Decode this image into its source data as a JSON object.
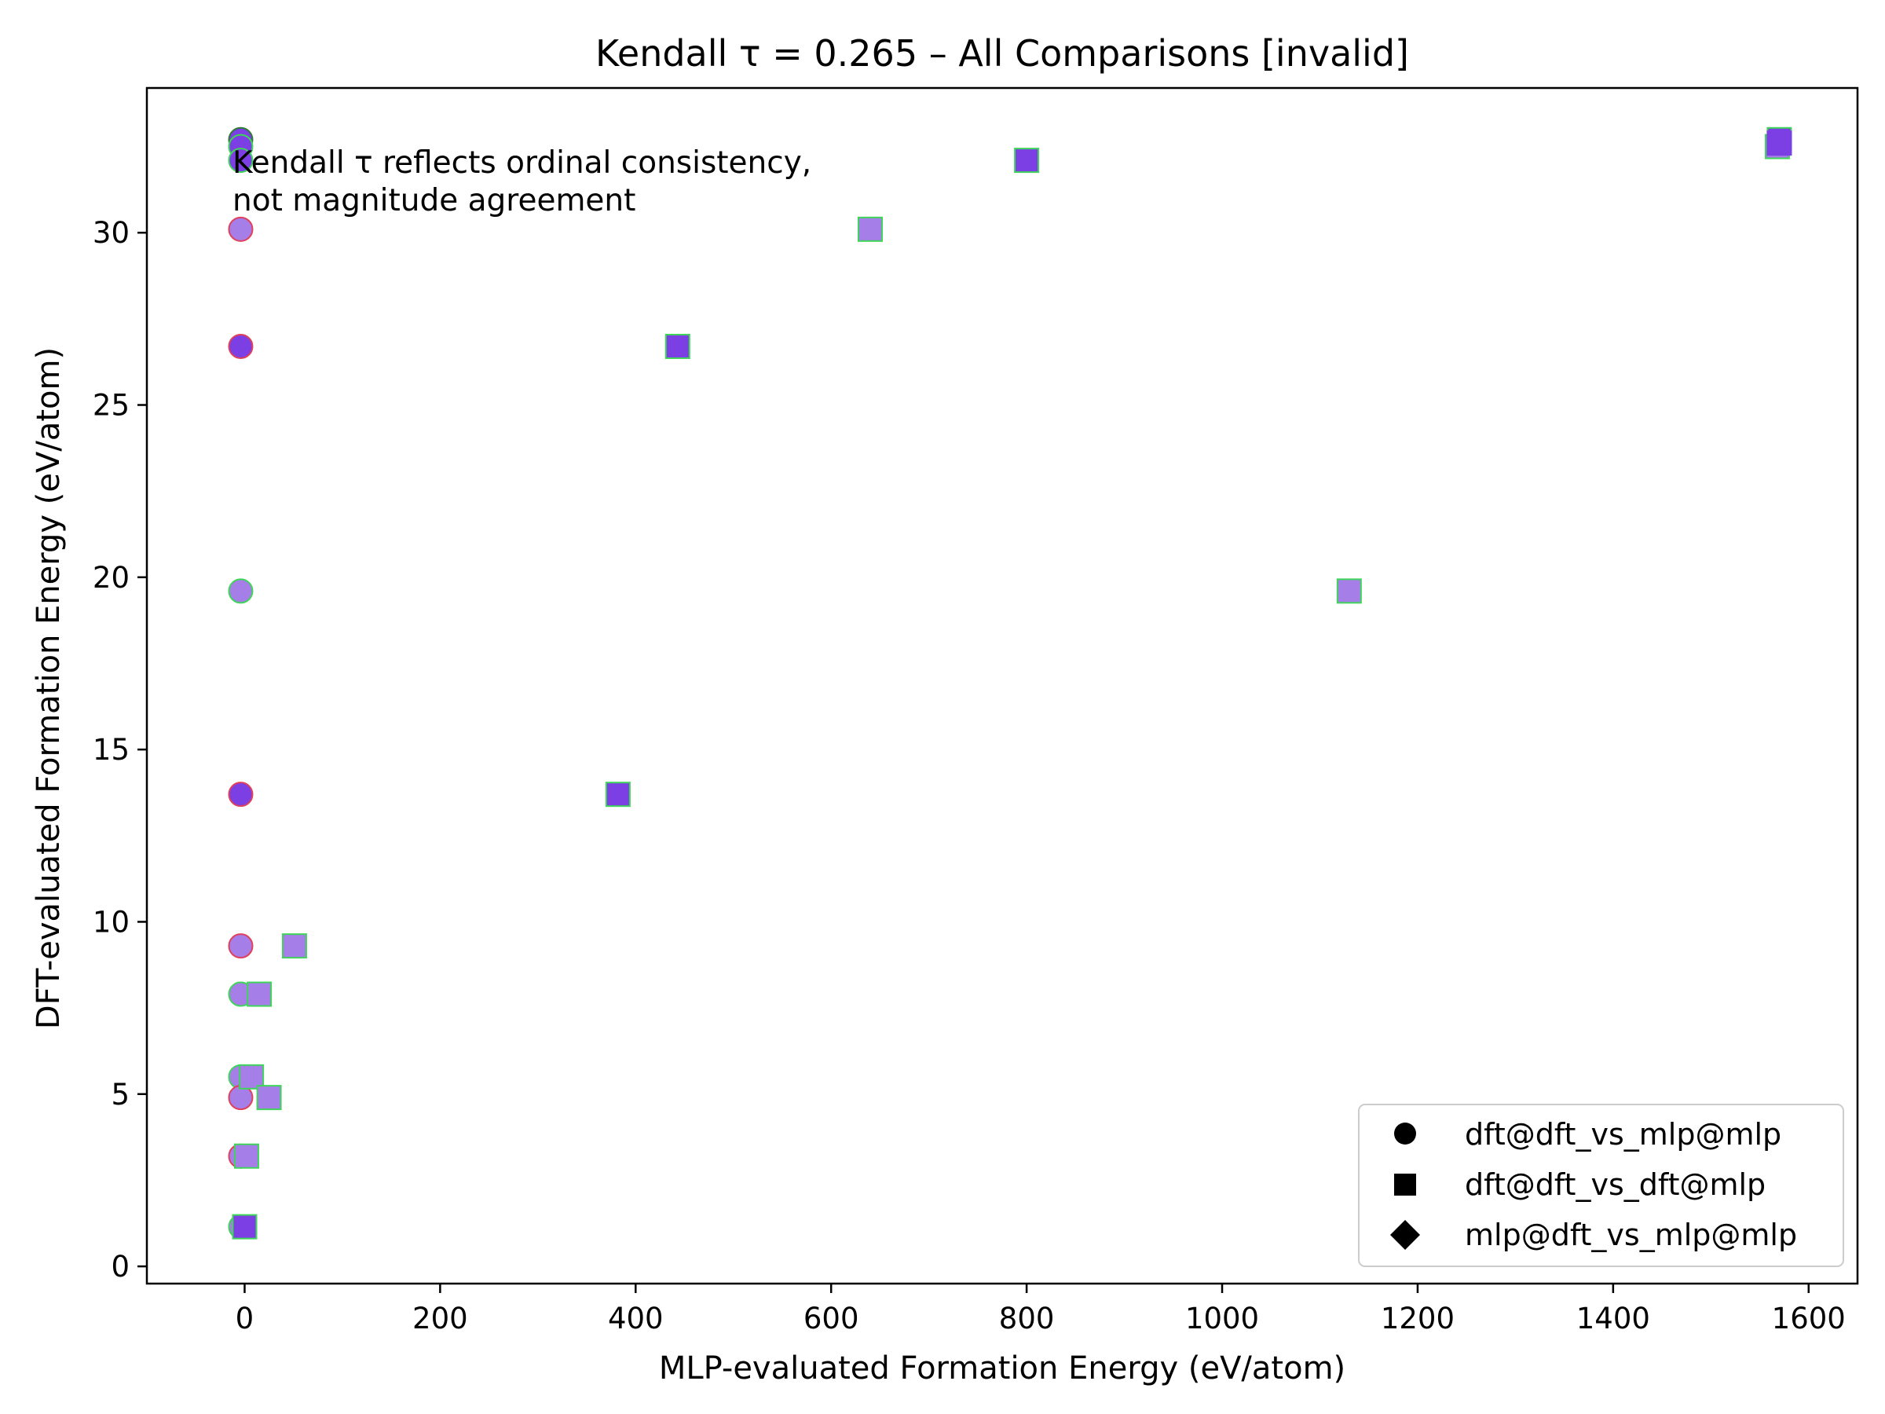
{
  "chart_data": {
    "type": "scatter",
    "title": "Kendall τ = 0.265 – All Comparisons [invalid]",
    "xlabel": "MLP-evaluated Formation Energy (eV/atom)",
    "ylabel": "DFT-evaluated Formation Energy (eV/atom)",
    "xlim": [
      -100,
      1650
    ],
    "ylim": [
      -0.5,
      34.2
    ],
    "xticks": [
      0,
      200,
      400,
      600,
      800,
      1000,
      1200,
      1400,
      1600
    ],
    "yticks": [
      0,
      5,
      10,
      15,
      20,
      25,
      30
    ],
    "grid": false,
    "legend_position": "lower-right",
    "annotation": [
      "Kendall τ reflects ordinal consistency,",
      "not magnitude agreement"
    ],
    "colors": {
      "fill_dark": "#7b3fe4",
      "fill_light": "#a67ee8",
      "edge_green": "#3fd45a",
      "edge_red": "#e0405a",
      "edge_darkgreen": "#2f7a35"
    },
    "series": [
      {
        "name": "dft@dft_vs_mlp@mlp",
        "marker": "circle",
        "points": [
          {
            "x": -4,
            "y": 32.7,
            "fill": "#7b3fe4",
            "edge": "#2f7a35"
          },
          {
            "x": -4,
            "y": 32.5,
            "fill": "#7b3fe4",
            "edge": "#3fd45a"
          },
          {
            "x": -4,
            "y": 32.1,
            "fill": "#7b3fe4",
            "edge": "#3fd45a"
          },
          {
            "x": -4,
            "y": 30.1,
            "fill": "#a67ee8",
            "edge": "#e0405a"
          },
          {
            "x": -4,
            "y": 26.7,
            "fill": "#7b3fe4",
            "edge": "#e0405a"
          },
          {
            "x": -4,
            "y": 19.6,
            "fill": "#a67ee8",
            "edge": "#3fd45a"
          },
          {
            "x": -4,
            "y": 13.7,
            "fill": "#7b3fe4",
            "edge": "#e0405a"
          },
          {
            "x": -4,
            "y": 9.3,
            "fill": "#a67ee8",
            "edge": "#e0405a"
          },
          {
            "x": -4,
            "y": 7.9,
            "fill": "#a67ee8",
            "edge": "#3fd45a"
          },
          {
            "x": -4,
            "y": 5.5,
            "fill": "#a67ee8",
            "edge": "#3fd45a"
          },
          {
            "x": -4,
            "y": 4.9,
            "fill": "#a67ee8",
            "edge": "#e0405a"
          },
          {
            "x": -4,
            "y": 3.2,
            "fill": "#a67ee8",
            "edge": "#e0405a"
          },
          {
            "x": -4,
            "y": 1.15,
            "fill": "#a67ee8",
            "edge": "#3fd45a"
          }
        ]
      },
      {
        "name": "dft@dft_vs_dft@mlp",
        "marker": "square",
        "points": [
          {
            "x": 1570,
            "y": 32.7,
            "fill": "#7b3fe4",
            "edge": "#3fd45a"
          },
          {
            "x": 1568,
            "y": 32.5,
            "fill": "#a67ee8",
            "edge": "#3fd45a"
          },
          {
            "x": 1570,
            "y": 32.6,
            "fill": "#7b3fe4",
            "edge": "#7b3fe4"
          },
          {
            "x": 800,
            "y": 32.1,
            "fill": "#7b3fe4",
            "edge": "#3fd45a"
          },
          {
            "x": 640,
            "y": 30.1,
            "fill": "#a67ee8",
            "edge": "#3fd45a"
          },
          {
            "x": 443,
            "y": 26.7,
            "fill": "#7b3fe4",
            "edge": "#3fd45a"
          },
          {
            "x": 1130,
            "y": 19.6,
            "fill": "#a67ee8",
            "edge": "#3fd45a"
          },
          {
            "x": 382,
            "y": 13.7,
            "fill": "#7b3fe4",
            "edge": "#3fd45a"
          },
          {
            "x": 51,
            "y": 9.3,
            "fill": "#a67ee8",
            "edge": "#3fd45a"
          },
          {
            "x": 15,
            "y": 7.9,
            "fill": "#a67ee8",
            "edge": "#3fd45a"
          },
          {
            "x": 7,
            "y": 5.5,
            "fill": "#a67ee8",
            "edge": "#3fd45a"
          },
          {
            "x": 25,
            "y": 4.9,
            "fill": "#a67ee8",
            "edge": "#3fd45a"
          },
          {
            "x": 2,
            "y": 3.2,
            "fill": "#a67ee8",
            "edge": "#3fd45a"
          },
          {
            "x": 0,
            "y": 1.15,
            "fill": "#7b3fe4",
            "edge": "#3fd45a"
          }
        ]
      },
      {
        "name": "mlp@dft_vs_mlp@mlp",
        "marker": "diamond",
        "points": []
      }
    ]
  }
}
